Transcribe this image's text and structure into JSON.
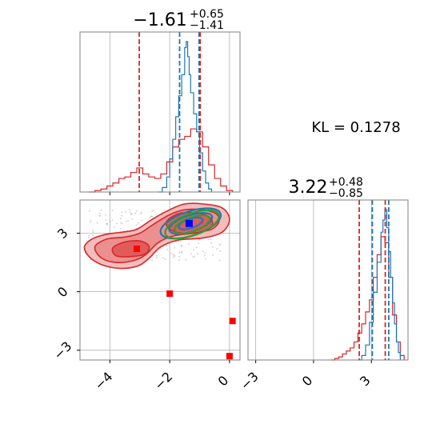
{
  "chart_data": {
    "type": "corner",
    "kl_label": "KL = 0.1278",
    "colors": {
      "red": "#d62728",
      "blue": "#1f77b4",
      "green": "#2ca02c",
      "grid": "#b0b0b0"
    },
    "param1": {
      "title_main": "−1.61",
      "title_plus": "+0.65",
      "title_minus": "−1.41",
      "xlim": [
        -5.0,
        0.35
      ],
      "ticks": [
        -4,
        -2,
        0
      ],
      "tick_labels": [
        "−4",
        "−2",
        "0"
      ],
      "red_quantile_lines": [
        -3.02,
        -0.98
      ],
      "blue_quantile_lines": [
        -1.67,
        -1.02
      ],
      "blue_hist": [
        [
          -2.4,
          0.0
        ],
        [
          -2.25,
          0.03
        ],
        [
          -2.1,
          0.1
        ],
        [
          -2.0,
          0.22
        ],
        [
          -1.9,
          0.35
        ],
        [
          -1.8,
          0.5
        ],
        [
          -1.7,
          0.64
        ],
        [
          -1.6,
          0.78
        ],
        [
          -1.5,
          0.96
        ],
        [
          -1.45,
          1.0
        ],
        [
          -1.4,
          0.9
        ],
        [
          -1.35,
          0.78
        ],
        [
          -1.3,
          0.66
        ],
        [
          -1.2,
          0.52
        ],
        [
          -1.1,
          0.4
        ],
        [
          -1.0,
          0.26
        ],
        [
          -0.9,
          0.14
        ],
        [
          -0.8,
          0.06
        ],
        [
          -0.7,
          0.02
        ],
        [
          -0.6,
          0.0
        ]
      ],
      "red_hist": [
        [
          -4.7,
          0.0
        ],
        [
          -4.5,
          0.01
        ],
        [
          -4.3,
          0.02
        ],
        [
          -4.1,
          0.04
        ],
        [
          -3.9,
          0.06
        ],
        [
          -3.7,
          0.09
        ],
        [
          -3.5,
          0.1
        ],
        [
          -3.3,
          0.13
        ],
        [
          -3.1,
          0.16
        ],
        [
          -2.9,
          0.12
        ],
        [
          -2.7,
          0.1
        ],
        [
          -2.5,
          0.09
        ],
        [
          -2.3,
          0.12
        ],
        [
          -2.1,
          0.2
        ],
        [
          -1.9,
          0.3
        ],
        [
          -1.7,
          0.35
        ],
        [
          -1.5,
          0.37
        ],
        [
          -1.3,
          0.42
        ],
        [
          -1.1,
          0.4
        ],
        [
          -0.9,
          0.3
        ],
        [
          -0.7,
          0.18
        ],
        [
          -0.5,
          0.09
        ],
        [
          -0.3,
          0.04
        ],
        [
          -0.1,
          0.01
        ],
        [
          0.1,
          0.0
        ]
      ]
    },
    "param2": {
      "title_main": "3.22",
      "title_plus": "+0.48",
      "title_minus": "−0.85",
      "xlim": [
        -3.4,
        4.9
      ],
      "ticks": [
        -3,
        0,
        3
      ],
      "tick_labels": [
        "−3",
        "0",
        "3"
      ],
      "red_quantile_lines": [
        2.37,
        3.72
      ],
      "blue_quantile_lines": [
        3.05,
        3.9
      ],
      "blue_hist": [
        [
          2.3,
          0.0
        ],
        [
          2.5,
          0.03
        ],
        [
          2.7,
          0.1
        ],
        [
          2.9,
          0.25
        ],
        [
          3.1,
          0.45
        ],
        [
          3.3,
          0.65
        ],
        [
          3.5,
          0.85
        ],
        [
          3.6,
          0.93
        ],
        [
          3.7,
          1.0
        ],
        [
          3.8,
          0.88
        ],
        [
          3.9,
          0.72
        ],
        [
          4.0,
          0.55
        ],
        [
          4.1,
          0.38
        ],
        [
          4.2,
          0.24
        ],
        [
          4.3,
          0.12
        ],
        [
          4.4,
          0.05
        ],
        [
          4.5,
          0.0
        ]
      ],
      "red_hist": [
        [
          0.9,
          0.0
        ],
        [
          1.1,
          0.01
        ],
        [
          1.3,
          0.02
        ],
        [
          1.5,
          0.04
        ],
        [
          1.7,
          0.06
        ],
        [
          1.9,
          0.08
        ],
        [
          2.1,
          0.12
        ],
        [
          2.3,
          0.18
        ],
        [
          2.5,
          0.24
        ],
        [
          2.7,
          0.32
        ],
        [
          2.9,
          0.4
        ],
        [
          3.1,
          0.55
        ],
        [
          3.3,
          0.7
        ],
        [
          3.5,
          0.82
        ],
        [
          3.7,
          0.78
        ],
        [
          3.9,
          0.55
        ],
        [
          4.1,
          0.3
        ],
        [
          4.3,
          0.12
        ],
        [
          4.5,
          0.03
        ],
        [
          4.7,
          0.0
        ]
      ]
    },
    "scatter": {
      "xlim": [
        -5.0,
        0.35
      ],
      "ylim": [
        -3.5,
        4.7
      ],
      "yticks": [
        -3,
        0,
        3
      ],
      "ytick_labels": [
        "−3",
        "0",
        "3"
      ],
      "red_markers": [
        [
          -3.1,
          2.2
        ],
        [
          -2.0,
          -0.1
        ],
        [
          0.1,
          -1.5
        ],
        [
          0.0,
          -3.3
        ]
      ],
      "blue_marker": [
        -1.35,
        3.5
      ],
      "red_contours": [
        [
          [
            -4.85,
            2.3
          ],
          [
            -4.6,
            2.7
          ],
          [
            -4.1,
            2.95
          ],
          [
            -3.6,
            3.05
          ],
          [
            -3.1,
            3.2
          ],
          [
            -2.6,
            3.7
          ],
          [
            -2.0,
            4.2
          ],
          [
            -1.5,
            4.5
          ],
          [
            -0.9,
            4.5
          ],
          [
            -0.25,
            4.3
          ],
          [
            0.0,
            3.7
          ],
          [
            -0.25,
            3.05
          ],
          [
            -0.9,
            2.75
          ],
          [
            -1.7,
            2.65
          ],
          [
            -2.3,
            2.3
          ],
          [
            -2.7,
            1.7
          ],
          [
            -3.1,
            1.3
          ],
          [
            -3.7,
            1.2
          ],
          [
            -4.3,
            1.4
          ],
          [
            -4.7,
            1.8
          ]
        ],
        [
          [
            -4.5,
            2.3
          ],
          [
            -4.1,
            2.7
          ],
          [
            -3.5,
            2.8
          ],
          [
            -3.0,
            3.0
          ],
          [
            -2.5,
            3.5
          ],
          [
            -2.0,
            3.95
          ],
          [
            -1.5,
            4.2
          ],
          [
            -0.9,
            4.2
          ],
          [
            -0.45,
            4.0
          ],
          [
            -0.35,
            3.6
          ],
          [
            -0.6,
            3.2
          ],
          [
            -1.2,
            3.0
          ],
          [
            -1.9,
            2.85
          ],
          [
            -2.4,
            2.5
          ],
          [
            -2.8,
            1.9
          ],
          [
            -3.2,
            1.6
          ],
          [
            -3.8,
            1.5
          ],
          [
            -4.3,
            1.75
          ]
        ],
        [
          [
            -3.9,
            2.25
          ],
          [
            -3.5,
            2.55
          ],
          [
            -3.0,
            2.6
          ],
          [
            -2.7,
            2.35
          ],
          [
            -2.8,
            1.95
          ],
          [
            -3.3,
            1.8
          ],
          [
            -3.8,
            1.85
          ]
        ],
        [
          [
            -2.1,
            3.6
          ],
          [
            -1.7,
            4.0
          ],
          [
            -1.1,
            4.05
          ],
          [
            -0.65,
            3.8
          ],
          [
            -0.6,
            3.35
          ],
          [
            -1.0,
            3.05
          ],
          [
            -1.6,
            3.0
          ],
          [
            -2.0,
            3.2
          ]
        ]
      ],
      "blue_ellipses": [
        {
          "cx": -1.3,
          "cy": 3.5,
          "rx": 1.05,
          "ry": 0.62,
          "angle_deg": -18
        },
        {
          "cx": -1.3,
          "cy": 3.5,
          "rx": 0.75,
          "ry": 0.42,
          "angle_deg": -18
        },
        {
          "cx": -1.3,
          "cy": 3.5,
          "rx": 0.42,
          "ry": 0.24,
          "angle_deg": -18
        }
      ],
      "green_ellipses": [
        {
          "cx": -1.25,
          "cy": 3.45,
          "rx": 0.95,
          "ry": 0.56,
          "angle_deg": -20
        },
        {
          "cx": -1.25,
          "cy": 3.45,
          "rx": 0.62,
          "ry": 0.36,
          "angle_deg": -20
        }
      ]
    }
  }
}
